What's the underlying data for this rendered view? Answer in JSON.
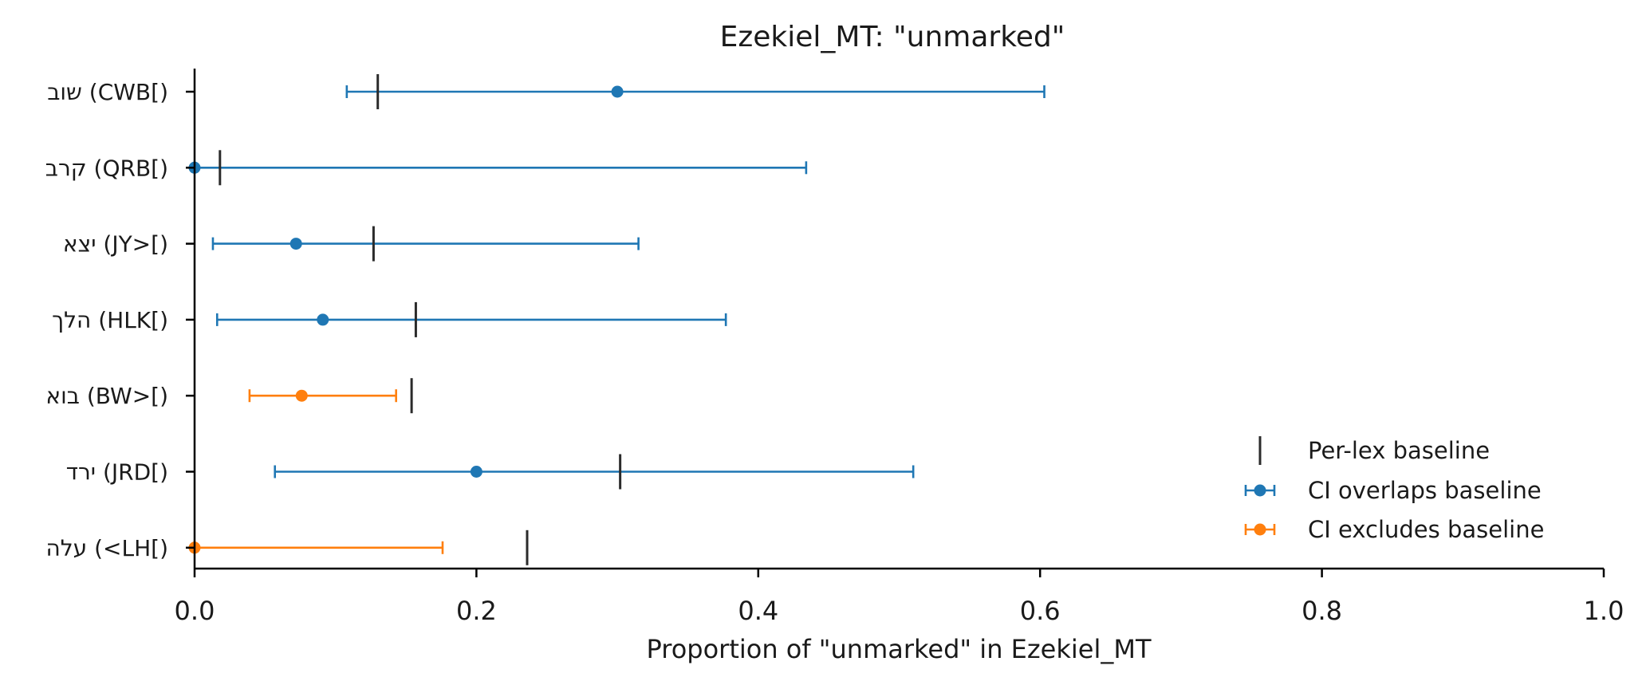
{
  "chart_data": {
    "type": "scatter",
    "title": "Ezekiel_MT: \"unmarked\"",
    "xlabel": "Proportion of \"unmarked\" in Ezekiel_MT",
    "ylabel": "",
    "xlim": [
      0.0,
      1.0
    ],
    "xticks": [
      "0.0",
      "0.2",
      "0.4",
      "0.6",
      "0.8",
      "1.0"
    ],
    "grid": false,
    "legend_position": "lower-right",
    "colors": {
      "overlaps": "#1f77b4",
      "excludes": "#ff7f0e",
      "baseline": "#2b2b2b"
    },
    "legend": [
      {
        "key": "baseline",
        "label": "Per-lex baseline"
      },
      {
        "key": "overlaps",
        "label": "CI overlaps baseline"
      },
      {
        "key": "excludes",
        "label": "CI excludes baseline"
      }
    ],
    "rows": [
      {
        "label": "שוב (CWB[)",
        "value": 0.3,
        "ci_low": 0.108,
        "ci_high": 0.603,
        "baseline": 0.13,
        "status": "overlaps"
      },
      {
        "label": "קרב (QRB[)",
        "value": 0.0,
        "ci_low": 0.0,
        "ci_high": 0.434,
        "baseline": 0.018,
        "status": "overlaps"
      },
      {
        "label": "יצא (JY>[)",
        "value": 0.072,
        "ci_low": 0.013,
        "ci_high": 0.315,
        "baseline": 0.127,
        "status": "overlaps"
      },
      {
        "label": "הלך (HLK[)",
        "value": 0.091,
        "ci_low": 0.016,
        "ci_high": 0.377,
        "baseline": 0.157,
        "status": "overlaps"
      },
      {
        "label": "בוא (BW>[)",
        "value": 0.076,
        "ci_low": 0.039,
        "ci_high": 0.143,
        "baseline": 0.154,
        "status": "excludes"
      },
      {
        "label": "ירד (JRD[)",
        "value": 0.2,
        "ci_low": 0.057,
        "ci_high": 0.51,
        "baseline": 0.302,
        "status": "overlaps"
      },
      {
        "label": "עלה (<LH[)",
        "value": 0.0,
        "ci_low": 0.0,
        "ci_high": 0.176,
        "baseline": 0.236,
        "status": "excludes"
      }
    ]
  }
}
